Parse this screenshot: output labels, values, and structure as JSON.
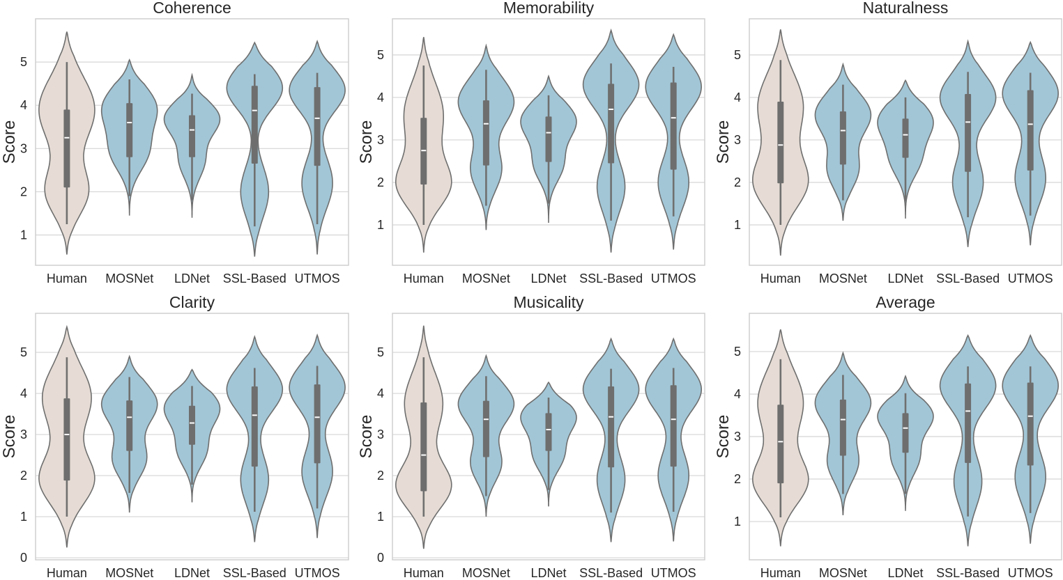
{
  "chart_data": [
    {
      "type": "violin",
      "title": "Coherence",
      "ylabel": "Score",
      "ylim": [
        0.3,
        6.0
      ],
      "yticks": [
        1,
        2,
        3,
        4,
        5
      ],
      "categories": [
        "Human",
        "MOSNet",
        "LDNet",
        "SSL-Based",
        "UTMOS"
      ],
      "colors": [
        "#e6dcd5",
        "#a2c6d6",
        "#a2c6d6",
        "#a2c6d6",
        "#a2c6d6"
      ],
      "series": [
        {
          "name": "Human",
          "min": 1.25,
          "q1": 2.1,
          "median": 3.25,
          "q3": 3.9,
          "max": 5.0,
          "range": [
            0.55,
            5.7
          ],
          "peaks": [
            [
              2.0,
              0.75,
              0.55
            ],
            [
              3.9,
              1.0,
              0.75
            ]
          ]
        },
        {
          "name": "MOSNet",
          "min": 1.9,
          "q1": 2.8,
          "median": 3.6,
          "q3": 4.05,
          "max": 4.6,
          "range": [
            1.45,
            5.05
          ],
          "peaks": [
            [
              2.9,
              0.65,
              0.45
            ],
            [
              3.95,
              1.0,
              0.5
            ]
          ]
        },
        {
          "name": "LDNet",
          "min": 1.8,
          "q1": 2.8,
          "median": 3.43,
          "q3": 3.77,
          "max": 4.27,
          "range": [
            1.4,
            4.7
          ],
          "peaks": [
            [
              2.7,
              0.45,
              0.4
            ],
            [
              3.7,
              1.0,
              0.4
            ]
          ]
        },
        {
          "name": "SSL-Based",
          "min": 1.2,
          "q1": 2.65,
          "median": 3.88,
          "q3": 4.45,
          "max": 4.72,
          "range": [
            0.5,
            5.45
          ],
          "peaks": [
            [
              2.0,
              0.5,
              0.6
            ],
            [
              4.4,
              1.0,
              0.5
            ]
          ]
        },
        {
          "name": "UTMOS",
          "min": 1.25,
          "q1": 2.6,
          "median": 3.7,
          "q3": 4.42,
          "max": 4.75,
          "range": [
            0.55,
            5.48
          ],
          "peaks": [
            [
              2.2,
              0.55,
              0.6
            ],
            [
              4.35,
              1.0,
              0.5
            ]
          ]
        }
      ]
    },
    {
      "type": "violin",
      "title": "Memorability",
      "ylabel": "Score",
      "ylim": [
        0.05,
        5.85
      ],
      "yticks": [
        1,
        2,
        3,
        4,
        5
      ],
      "categories": [
        "Human",
        "MOSNet",
        "LDNet",
        "SSL-Based",
        "UTMOS"
      ],
      "colors": [
        "#e6dcd5",
        "#a2c6d6",
        "#a2c6d6",
        "#a2c6d6",
        "#a2c6d6"
      ],
      "series": [
        {
          "name": "Human",
          "min": 1.0,
          "q1": 1.95,
          "median": 2.75,
          "q3": 3.52,
          "max": 4.75,
          "range": [
            0.35,
            5.42
          ],
          "peaks": [
            [
              1.95,
              1.0,
              0.55
            ],
            [
              3.6,
              0.75,
              0.75
            ]
          ]
        },
        {
          "name": "MOSNet",
          "min": 1.45,
          "q1": 2.4,
          "median": 3.38,
          "q3": 3.93,
          "max": 4.65,
          "range": [
            0.88,
            5.22
          ],
          "peaks": [
            [
              2.3,
              0.55,
              0.5
            ],
            [
              3.9,
              1.0,
              0.55
            ]
          ]
        },
        {
          "name": "LDNet",
          "min": 1.5,
          "q1": 2.48,
          "median": 3.17,
          "q3": 3.55,
          "max": 4.05,
          "range": [
            1.05,
            4.5
          ],
          "peaks": [
            [
              2.4,
              0.5,
              0.4
            ],
            [
              3.45,
              1.0,
              0.45
            ]
          ]
        },
        {
          "name": "SSL-Based",
          "min": 1.1,
          "q1": 2.45,
          "median": 3.72,
          "q3": 4.32,
          "max": 4.8,
          "range": [
            0.35,
            5.58
          ],
          "peaks": [
            [
              1.9,
              0.5,
              0.6
            ],
            [
              4.3,
              1.0,
              0.55
            ]
          ]
        },
        {
          "name": "UTMOS",
          "min": 1.2,
          "q1": 2.3,
          "median": 3.52,
          "q3": 4.35,
          "max": 4.72,
          "range": [
            0.42,
            5.48
          ],
          "peaks": [
            [
              2.0,
              0.55,
              0.6
            ],
            [
              4.25,
              1.0,
              0.55
            ]
          ]
        }
      ]
    },
    {
      "type": "violin",
      "title": "Naturalness",
      "ylabel": "Score",
      "ylim": [
        0.05,
        5.85
      ],
      "yticks": [
        1,
        2,
        3,
        4,
        5
      ],
      "categories": [
        "Human",
        "MOSNet",
        "LDNet",
        "SSL-Based",
        "UTMOS"
      ],
      "colors": [
        "#e6dcd5",
        "#a2c6d6",
        "#a2c6d6",
        "#a2c6d6",
        "#a2c6d6"
      ],
      "series": [
        {
          "name": "Human",
          "min": 1.0,
          "q1": 1.98,
          "median": 2.88,
          "q3": 3.9,
          "max": 4.88,
          "range": [
            0.28,
            5.6
          ],
          "peaks": [
            [
              2.0,
              1.0,
              0.6
            ],
            [
              3.8,
              0.85,
              0.75
            ]
          ]
        },
        {
          "name": "MOSNet",
          "min": 1.58,
          "q1": 2.42,
          "median": 3.22,
          "q3": 3.67,
          "max": 4.3,
          "range": [
            1.1,
            4.78
          ],
          "peaks": [
            [
              2.3,
              0.55,
              0.45
            ],
            [
              3.6,
              1.0,
              0.5
            ]
          ]
        },
        {
          "name": "LDNet",
          "min": 1.55,
          "q1": 2.58,
          "median": 3.12,
          "q3": 3.5,
          "max": 4.0,
          "range": [
            1.15,
            4.4
          ],
          "peaks": [
            [
              2.5,
              0.5,
              0.4
            ],
            [
              3.45,
              1.0,
              0.45
            ]
          ]
        },
        {
          "name": "SSL-Based",
          "min": 1.18,
          "q1": 2.25,
          "median": 3.42,
          "q3": 4.08,
          "max": 4.6,
          "range": [
            0.48,
            5.32
          ],
          "peaks": [
            [
              2.0,
              0.55,
              0.6
            ],
            [
              4.0,
              1.0,
              0.55
            ]
          ]
        },
        {
          "name": "UTMOS",
          "min": 1.22,
          "q1": 2.28,
          "median": 3.37,
          "q3": 4.17,
          "max": 4.58,
          "range": [
            0.52,
            5.3
          ],
          "peaks": [
            [
              2.1,
              0.55,
              0.6
            ],
            [
              4.1,
              1.0,
              0.55
            ]
          ]
        }
      ]
    },
    {
      "type": "violin",
      "title": "Clarity",
      "ylabel": "Score",
      "ylim": [
        -0.05,
        5.95
      ],
      "yticks": [
        0,
        1,
        2,
        3,
        4,
        5
      ],
      "categories": [
        "Human",
        "MOSNet",
        "LDNet",
        "SSL-Based",
        "UTMOS"
      ],
      "colors": [
        "#e6dcd5",
        "#a2c6d6",
        "#a2c6d6",
        "#a2c6d6",
        "#a2c6d6"
      ],
      "series": [
        {
          "name": "Human",
          "min": 1.0,
          "q1": 1.88,
          "median": 3.0,
          "q3": 3.88,
          "max": 4.88,
          "range": [
            0.25,
            5.62
          ],
          "peaks": [
            [
              1.9,
              1.0,
              0.6
            ],
            [
              3.9,
              0.9,
              0.75
            ]
          ]
        },
        {
          "name": "MOSNet",
          "min": 1.58,
          "q1": 2.6,
          "median": 3.42,
          "q3": 3.83,
          "max": 4.4,
          "range": [
            1.1,
            4.9
          ],
          "peaks": [
            [
              2.4,
              0.6,
              0.45
            ],
            [
              3.75,
              1.0,
              0.5
            ]
          ]
        },
        {
          "name": "LDNet",
          "min": 1.78,
          "q1": 2.75,
          "median": 3.28,
          "q3": 3.7,
          "max": 4.18,
          "range": [
            1.35,
            4.58
          ],
          "peaks": [
            [
              2.6,
              0.5,
              0.4
            ],
            [
              3.65,
              1.0,
              0.45
            ]
          ]
        },
        {
          "name": "SSL-Based",
          "min": 1.12,
          "q1": 2.22,
          "median": 3.47,
          "q3": 4.17,
          "max": 4.62,
          "range": [
            0.38,
            5.38
          ],
          "peaks": [
            [
              1.9,
              0.5,
              0.6
            ],
            [
              4.1,
              1.0,
              0.55
            ]
          ]
        },
        {
          "name": "UTMOS",
          "min": 1.2,
          "q1": 2.3,
          "median": 3.42,
          "q3": 4.22,
          "max": 4.67,
          "range": [
            0.48,
            5.42
          ],
          "peaks": [
            [
              2.1,
              0.55,
              0.6
            ],
            [
              4.15,
              1.0,
              0.55
            ]
          ]
        }
      ]
    },
    {
      "type": "violin",
      "title": "Musicality",
      "ylabel": "Score",
      "ylim": [
        -0.05,
        5.95
      ],
      "yticks": [
        0,
        1,
        2,
        3,
        4,
        5
      ],
      "categories": [
        "Human",
        "MOSNet",
        "LDNet",
        "SSL-Based",
        "UTMOS"
      ],
      "colors": [
        "#e6dcd5",
        "#a2c6d6",
        "#a2c6d6",
        "#a2c6d6",
        "#a2c6d6"
      ],
      "series": [
        {
          "name": "Human",
          "min": 1.0,
          "q1": 1.62,
          "median": 2.5,
          "q3": 3.78,
          "max": 4.88,
          "range": [
            0.22,
            5.65
          ],
          "peaks": [
            [
              1.75,
              1.0,
              0.55
            ],
            [
              3.75,
              0.7,
              0.75
            ]
          ]
        },
        {
          "name": "MOSNet",
          "min": 1.5,
          "q1": 2.45,
          "median": 3.37,
          "q3": 3.82,
          "max": 4.42,
          "range": [
            1.0,
            4.92
          ],
          "peaks": [
            [
              2.3,
              0.55,
              0.45
            ],
            [
              3.75,
              1.0,
              0.5
            ]
          ]
        },
        {
          "name": "LDNet",
          "min": 1.65,
          "q1": 2.6,
          "median": 3.12,
          "q3": 3.52,
          "max": 3.9,
          "range": [
            1.25,
            4.27
          ],
          "peaks": [
            [
              2.5,
              0.55,
              0.4
            ],
            [
              3.45,
              1.0,
              0.4
            ]
          ]
        },
        {
          "name": "SSL-Based",
          "min": 1.1,
          "q1": 2.2,
          "median": 3.43,
          "q3": 4.17,
          "max": 4.6,
          "range": [
            0.38,
            5.33
          ],
          "peaks": [
            [
              1.9,
              0.5,
              0.6
            ],
            [
              4.1,
              1.0,
              0.55
            ]
          ]
        },
        {
          "name": "UTMOS",
          "min": 1.12,
          "q1": 2.22,
          "median": 3.37,
          "q3": 4.2,
          "max": 4.62,
          "range": [
            0.4,
            5.33
          ],
          "peaks": [
            [
              2.0,
              0.55,
              0.6
            ],
            [
              4.1,
              1.0,
              0.55
            ]
          ]
        }
      ]
    },
    {
      "type": "violin",
      "title": "Average",
      "ylabel": "Score",
      "ylim": [
        0.1,
        5.9
      ],
      "yticks": [
        1,
        2,
        3,
        4,
        5
      ],
      "categories": [
        "Human",
        "MOSNet",
        "LDNet",
        "SSL-Based",
        "UTMOS"
      ],
      "colors": [
        "#e6dcd5",
        "#a2c6d6",
        "#a2c6d6",
        "#a2c6d6",
        "#a2c6d6"
      ],
      "series": [
        {
          "name": "Human",
          "min": 1.1,
          "q1": 1.9,
          "median": 2.88,
          "q3": 3.75,
          "max": 4.82,
          "range": [
            0.42,
            5.52
          ],
          "peaks": [
            [
              1.95,
              1.0,
              0.55
            ],
            [
              3.8,
              0.85,
              0.75
            ]
          ]
        },
        {
          "name": "MOSNet",
          "min": 1.65,
          "q1": 2.55,
          "median": 3.4,
          "q3": 3.87,
          "max": 4.45,
          "range": [
            1.15,
            4.97
          ],
          "peaks": [
            [
              2.4,
              0.55,
              0.45
            ],
            [
              3.8,
              1.0,
              0.5
            ]
          ]
        },
        {
          "name": "LDNet",
          "min": 1.65,
          "q1": 2.62,
          "median": 3.2,
          "q3": 3.55,
          "max": 4.02,
          "range": [
            1.25,
            4.42
          ],
          "peaks": [
            [
              2.5,
              0.5,
              0.4
            ],
            [
              3.5,
              1.0,
              0.4
            ]
          ]
        },
        {
          "name": "SSL-Based",
          "min": 1.12,
          "q1": 2.38,
          "median": 3.6,
          "q3": 4.25,
          "max": 4.65,
          "range": [
            0.42,
            5.38
          ],
          "peaks": [
            [
              1.95,
              0.5,
              0.6
            ],
            [
              4.2,
              1.0,
              0.55
            ]
          ]
        },
        {
          "name": "UTMOS",
          "min": 1.2,
          "q1": 2.32,
          "median": 3.48,
          "q3": 4.27,
          "max": 4.65,
          "range": [
            0.48,
            5.38
          ],
          "peaks": [
            [
              2.05,
              0.55,
              0.6
            ],
            [
              4.2,
              1.0,
              0.55
            ]
          ]
        }
      ]
    }
  ]
}
